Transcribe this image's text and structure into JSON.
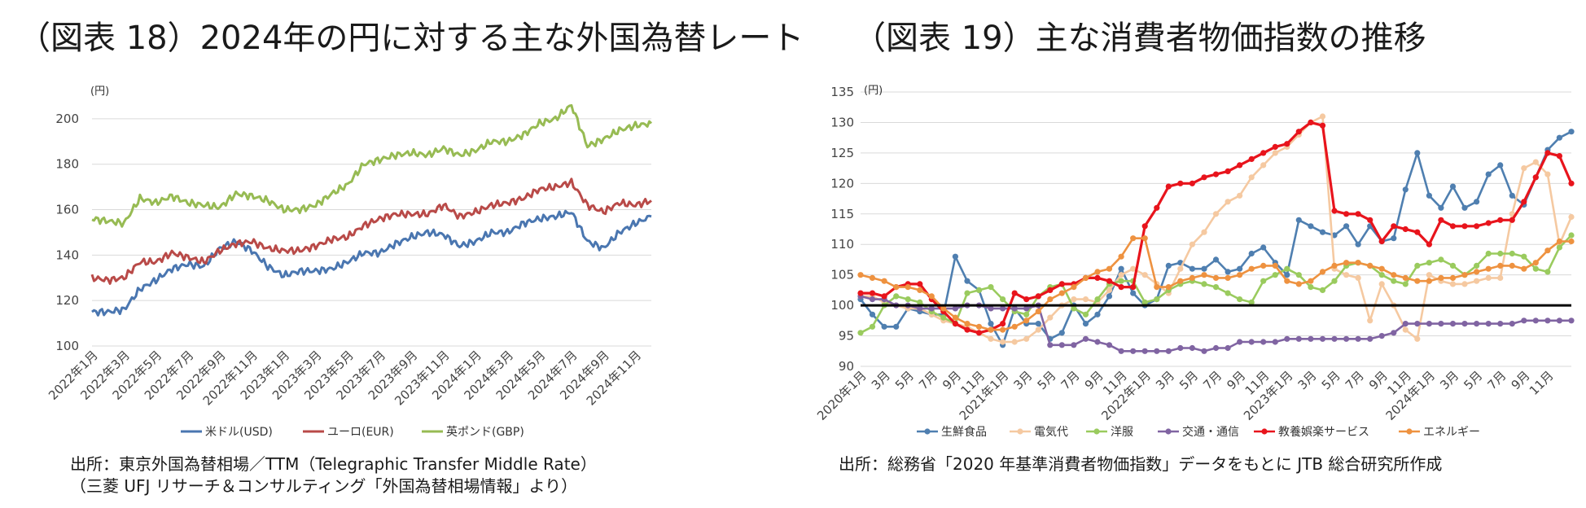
{
  "titles": {
    "left": "（図表 18）2024年の円に対する主な外国為替レート",
    "right": "（図表 19）主な消費者物価指数の推移"
  },
  "sources": {
    "left_line1": "出所：東京外国為替相場／TTM（Telegraphic Transfer Middle Rate）",
    "left_line2": "（三菱 UFJ リサーチ＆コンサルティング「外国為替相場情報」より）",
    "right": "出所：総務省「2020 年基準消費者物価指数」データをもとに JTB 総合研究所作成"
  },
  "colors": {
    "usd": "#4a76b0",
    "eur": "#b94a48",
    "gbp": "#97bb53",
    "fresh": "#4f7fb0",
    "electric": "#f5c9a1",
    "clothes": "#9acb5e",
    "transport": "#8064a2",
    "culture": "#e8141c",
    "energy": "#ee9240",
    "grid": "#d9d9d9",
    "base": "#000000"
  },
  "chart_data": [
    {
      "type": "line",
      "title": "（図表 18）2024年の円に対する主な外国為替レート",
      "unit_label": "(円)",
      "ylim": [
        100,
        210
      ],
      "yticks": [
        100,
        120,
        140,
        160,
        180,
        200
      ],
      "x_tick_labels": [
        "2022年1月",
        "2022年3月",
        "2022年5月",
        "2022年7月",
        "2022年9月",
        "2022年11月",
        "2023年1月",
        "2023年3月",
        "2023年5月",
        "2023年7月",
        "2023年9月",
        "2023年11月",
        "2024年1月",
        "2024年3月",
        "2024年5月",
        "2024年7月",
        "2024年9月",
        "2024年11月"
      ],
      "x_months": [
        "2022-01",
        "2022-02",
        "2022-03",
        "2022-04",
        "2022-05",
        "2022-06",
        "2022-07",
        "2022-08",
        "2022-09",
        "2022-10",
        "2022-11",
        "2022-12",
        "2023-01",
        "2023-02",
        "2023-03",
        "2023-04",
        "2023-05",
        "2023-06",
        "2023-07",
        "2023-08",
        "2023-09",
        "2023-10",
        "2023-11",
        "2023-12",
        "2024-01",
        "2024-02",
        "2024-03",
        "2024-04",
        "2024-05",
        "2024-06",
        "2024-07",
        "2024-08",
        "2024-09",
        "2024-10",
        "2024-11",
        "2024-12"
      ],
      "series": [
        {
          "name": "米ドル(USD)",
          "color_key": "usd",
          "values": [
            115,
            115,
            116,
            125,
            129,
            134,
            136,
            135,
            143,
            146,
            142,
            135,
            131,
            133,
            133,
            134,
            137,
            141,
            141,
            145,
            148,
            150,
            149,
            144,
            146,
            150,
            150,
            154,
            156,
            157,
            159,
            146,
            143,
            150,
            154,
            157
          ]
        },
        {
          "name": "ユーロ(EUR)",
          "color_key": "eur",
          "values": [
            130,
            129,
            130,
            137,
            137,
            141,
            139,
            137,
            142,
            145,
            146,
            143,
            142,
            142,
            144,
            147,
            148,
            153,
            156,
            158,
            158,
            158,
            162,
            157,
            159,
            162,
            163,
            165,
            169,
            170,
            172,
            162,
            159,
            163,
            162,
            164
          ]
        },
        {
          "name": "英ポンド(GBP)",
          "color_key": "gbp",
          "values": [
            156,
            155,
            154,
            165,
            163,
            166,
            163,
            162,
            161,
            167,
            166,
            164,
            160,
            160,
            162,
            167,
            171,
            180,
            182,
            184,
            185,
            184,
            187,
            184,
            186,
            190,
            190,
            193,
            198,
            200,
            206,
            188,
            191,
            195,
            197,
            198
          ]
        }
      ]
    },
    {
      "type": "line",
      "title": "（図表 19）主な消費者物価指数の推移",
      "unit_label": "(円)",
      "ylim": [
        90,
        135
      ],
      "yticks": [
        90,
        95,
        100,
        105,
        110,
        115,
        120,
        125,
        130,
        135
      ],
      "baseline": 100,
      "x_tick_labels": [
        "2020年1月",
        "3月",
        "5月",
        "7月",
        "9月",
        "11月",
        "2021年1月",
        "3月",
        "5月",
        "7月",
        "9月",
        "11月",
        "2022年1月",
        "3月",
        "5月",
        "7月",
        "9月",
        "11月",
        "2023年1月",
        "3月",
        "5月",
        "7月",
        "9月",
        "11月",
        "2024年1月",
        "3月",
        "5月",
        "7月",
        "9月",
        "11月"
      ],
      "series": [
        {
          "name": "生鮮食品",
          "color_key": "fresh",
          "values": [
            101,
            98.5,
            96.5,
            96.5,
            99.5,
            99,
            98.5,
            98.5,
            108,
            104,
            102.5,
            97,
            93.5,
            99.5,
            97,
            97,
            94.5,
            95.5,
            100,
            97,
            98.5,
            101.5,
            106,
            102,
            100,
            101,
            106.5,
            107,
            106,
            106,
            107.5,
            105.5,
            106,
            108.5,
            109.5,
            107,
            105,
            114,
            113,
            112,
            111.5,
            113,
            110,
            113,
            110.5,
            111,
            119,
            125,
            118,
            116,
            119.5,
            116,
            117,
            121.5,
            123,
            118,
            116.5,
            121,
            125.5,
            127.5,
            128.5
          ]
        },
        {
          "name": "電気代",
          "color_key": "electric",
          "values": [
            101.5,
            101.5,
            100.5,
            100,
            99.5,
            99.5,
            98.5,
            97.5,
            97,
            96.5,
            95.5,
            94.5,
            94,
            94,
            94.5,
            96,
            98,
            100,
            101,
            101,
            100.5,
            102.5,
            105,
            106,
            105,
            103.5,
            102,
            106,
            110,
            112,
            115,
            117,
            118,
            121,
            123,
            125,
            126,
            128,
            130,
            131,
            106,
            105,
            104.5,
            97.5,
            103.5,
            100,
            96,
            94.5,
            105,
            104,
            103.5,
            103.5,
            104,
            104.5,
            104.5,
            115,
            122.5,
            123.5,
            121.5,
            110,
            114.5
          ]
        },
        {
          "name": "洋服",
          "color_key": "clothes",
          "values": [
            95.5,
            96.5,
            100,
            101.5,
            101,
            100.5,
            99,
            98,
            97,
            102,
            102.5,
            103,
            101,
            99,
            98.5,
            101.5,
            103,
            103.5,
            99.5,
            98.5,
            101,
            103.5,
            104,
            104,
            100.5,
            101,
            102.5,
            103.5,
            104,
            103.5,
            103,
            102,
            101,
            100.5,
            104,
            105,
            106,
            105,
            103,
            102.5,
            104,
            106.5,
            107,
            106.5,
            105,
            104,
            103.5,
            106.5,
            107,
            107.5,
            106.5,
            105,
            106.5,
            108.5,
            108.5,
            108.5,
            108,
            106,
            105.5,
            109.5,
            111.5
          ]
        },
        {
          "name": "交通・通信",
          "color_key": "transport",
          "values": [
            101.5,
            101,
            101,
            100,
            100,
            99.5,
            99.5,
            99.5,
            99.5,
            100,
            100,
            99.5,
            99.5,
            99.5,
            99.5,
            100,
            93.5,
            93.5,
            93.5,
            94.5,
            94,
            93.5,
            92.5,
            92.5,
            92.5,
            92.5,
            92.5,
            93,
            93,
            92.5,
            93,
            93,
            94,
            94,
            94,
            94,
            94.5,
            94.5,
            94.5,
            94.5,
            94.5,
            94.5,
            94.5,
            94.5,
            95,
            95.5,
            97,
            97,
            97,
            97,
            97,
            97,
            97,
            97,
            97,
            97,
            97.5,
            97.5,
            97.5,
            97.5,
            97.5
          ]
        },
        {
          "name": "教養娯楽サービス",
          "color_key": "culture",
          "values": [
            102,
            102,
            101.5,
            103,
            103.5,
            103.5,
            101,
            99,
            97,
            96,
            95.5,
            96,
            97,
            102,
            101,
            101.5,
            102.5,
            103.5,
            103.5,
            104.5,
            104.5,
            104,
            103,
            103,
            113,
            116,
            119.5,
            120,
            120,
            121,
            121.5,
            122,
            123,
            124,
            125,
            126,
            126.5,
            128.5,
            130,
            129.5,
            115.5,
            115,
            115,
            114,
            110.5,
            113,
            112.5,
            112,
            110,
            114,
            113,
            113,
            113,
            113.5,
            114,
            114,
            117,
            121,
            125,
            124.5,
            120
          ]
        },
        {
          "name": "エネルギー",
          "color_key": "energy",
          "values": [
            105,
            104.5,
            104,
            103,
            103,
            102.5,
            101.5,
            99.5,
            98,
            97,
            96.5,
            96,
            96,
            96.5,
            97.5,
            99,
            101,
            102,
            103,
            104.5,
            105.5,
            106,
            108,
            111,
            111,
            103,
            103,
            104,
            104.5,
            105,
            104.5,
            104.5,
            105,
            106,
            106.5,
            106.5,
            104,
            103.5,
            104,
            105.5,
            106.5,
            107,
            107,
            106.5,
            106,
            105,
            104.5,
            104,
            104,
            104.5,
            104.5,
            105,
            105.5,
            106,
            106.5,
            106.5,
            106,
            107,
            109,
            110.5,
            110.5
          ]
        }
      ]
    }
  ]
}
